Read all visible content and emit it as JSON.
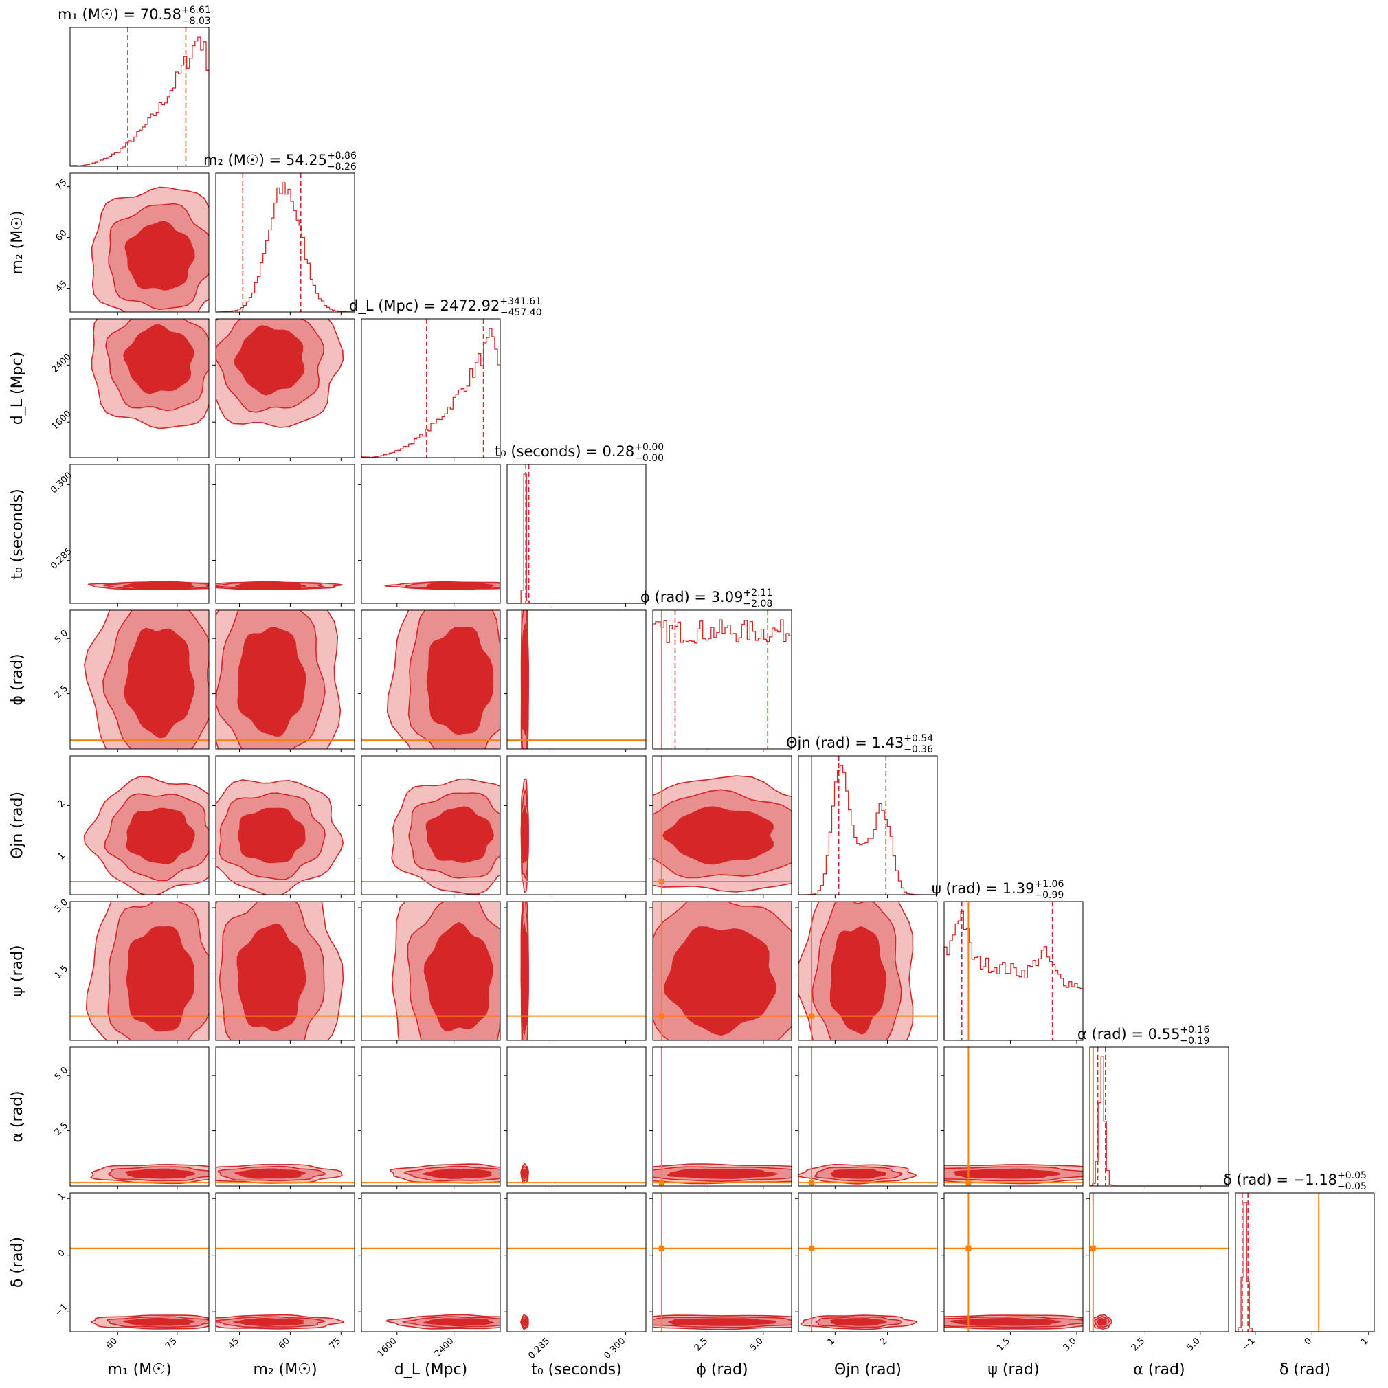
{
  "colors": {
    "posterior": "#d62728",
    "posterior_light": "#e98a8b",
    "truth": "#ff7f0e",
    "frame": "#000000"
  },
  "chart_data": {
    "type": "corner",
    "parameters": [
      {
        "key": "m1",
        "label": "m₁ (M☉)",
        "title": "m₁ (M☉) = 70.58",
        "median": 70.58,
        "err_plus": "+6.61",
        "err_minus": "−8.03",
        "range": [
          48,
          83
        ],
        "ticks": [
          60,
          75
        ],
        "tick_labels": [
          "60",
          "75"
        ],
        "quantiles": [
          62.55,
          77.19
        ],
        "truth": null
      },
      {
        "key": "m2",
        "label": "m₂ (M☉)",
        "title": "m₂ (M☉) = 54.25",
        "median": 54.25,
        "err_plus": "+8.86",
        "err_minus": "−8.26",
        "range": [
          38,
          79
        ],
        "ticks": [
          45,
          60,
          75
        ],
        "tick_labels": [
          "45",
          "60",
          "75"
        ],
        "quantiles": [
          45.99,
          63.11
        ],
        "truth": null
      },
      {
        "key": "dL",
        "label": "d_L (Mpc)",
        "title": "d_L (Mpc) = 2472.92",
        "median": 2472.92,
        "err_plus": "+341.61",
        "err_minus": "−457.40",
        "range": [
          1100,
          3050
        ],
        "ticks": [
          1600,
          2400
        ],
        "tick_labels": [
          "1600",
          "2400"
        ],
        "quantiles": [
          2015.52,
          2814.53
        ],
        "truth": null
      },
      {
        "key": "t0",
        "label": "t₀ (seconds)",
        "title": "t₀ (seconds) = 0.28",
        "median": 0.28,
        "err_plus": "+0.00",
        "err_minus": "−0.00",
        "range": [
          0.2765,
          0.304
        ],
        "ticks": [
          0.285,
          0.3
        ],
        "tick_labels": [
          "0.285",
          "0.300"
        ],
        "quantiles": [
          0.2802,
          0.2808
        ],
        "truth": null
      },
      {
        "key": "phi",
        "label": "ϕ (rad)",
        "title": "ϕ (rad) = 3.09",
        "median": 3.09,
        "err_plus": "+2.11",
        "err_minus": "−2.08",
        "range": [
          0,
          6.28
        ],
        "ticks": [
          2.5,
          5.0
        ],
        "tick_labels": [
          "2.5",
          "5.0"
        ],
        "quantiles": [
          1.01,
          5.2
        ],
        "truth": 0.4
      },
      {
        "key": "theta_jn",
        "label": "Θjn (rad)",
        "title": "Θjn (rad) = 1.43",
        "median": 1.43,
        "err_plus": "+0.54",
        "err_minus": "−0.36",
        "range": [
          0.3,
          2.95
        ],
        "ticks": [
          1,
          2
        ],
        "tick_labels": [
          "1",
          "2"
        ],
        "quantiles": [
          1.07,
          1.97
        ],
        "truth": 0.55
      },
      {
        "key": "psi",
        "label": "ψ (rad)",
        "title": "ψ (rad) = 1.39",
        "median": 1.39,
        "err_plus": "+1.06",
        "err_minus": "−0.99",
        "range": [
          0,
          3.14
        ],
        "ticks": [
          1.5,
          3.0
        ],
        "tick_labels": [
          "1.5",
          "3.0"
        ],
        "quantiles": [
          0.4,
          2.45
        ],
        "truth": 0.55
      },
      {
        "key": "alpha",
        "label": "α (rad)",
        "title": "α (rad) = 0.55",
        "median": 0.55,
        "err_plus": "+0.16",
        "err_minus": "−0.19",
        "range": [
          0,
          6.28
        ],
        "ticks": [
          2.5,
          5.0
        ],
        "tick_labels": [
          "2.5",
          "5.0"
        ],
        "quantiles": [
          0.36,
          0.71
        ],
        "truth": 0.15
      },
      {
        "key": "delta",
        "label": "δ (rad)",
        "title": "δ (rad) = −1.18",
        "median": -1.18,
        "err_plus": "+0.05",
        "err_minus": "−0.05",
        "range": [
          -1.35,
          1.1
        ],
        "ticks": [
          -1,
          0,
          1
        ],
        "tick_labels": [
          "−1",
          "0",
          "1"
        ],
        "quantiles": [
          -1.23,
          -1.13
        ],
        "truth": 0.12
      }
    ],
    "hist_shapes": {
      "m1": "rising",
      "m2": "peak",
      "dL": "rising",
      "t0": "narrow",
      "phi": "flat",
      "theta_jn": "bimodal",
      "psi": "flat_bimodal",
      "alpha": "narrow",
      "delta": "narrow"
    },
    "sigma_levels": [
      "1σ",
      "2σ",
      "3σ"
    ],
    "legend": "none",
    "grid": false
  }
}
